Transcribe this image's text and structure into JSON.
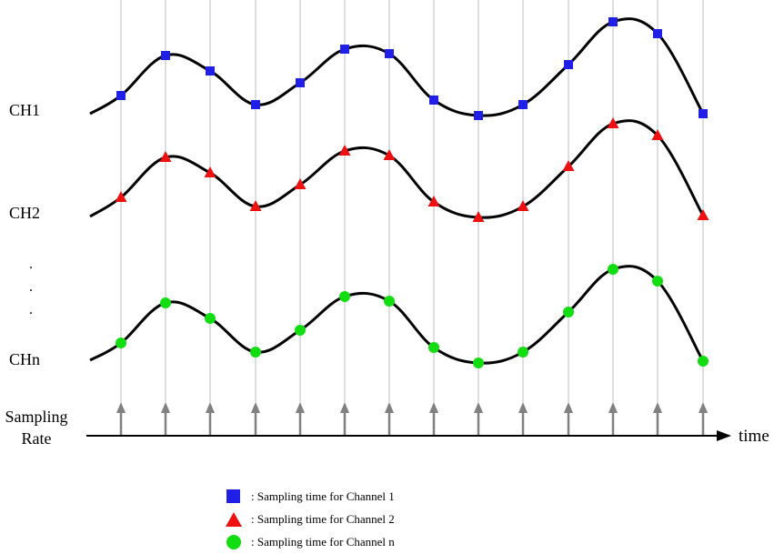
{
  "channels": [
    {
      "label": "CH1",
      "marker": "square",
      "color": "#1f1fe6"
    },
    {
      "label": "CH2",
      "marker": "triangle",
      "color": "#ee1111"
    },
    {
      "label": "CHn",
      "marker": "circle",
      "color": "#11dd11"
    }
  ],
  "ellipsis": ".",
  "axis": {
    "left_label_line1": "Sampling",
    "left_label_line2": "Rate",
    "right_label": "time"
  },
  "legend": [
    {
      "marker": "square",
      "color": "#1f1fe6",
      "text": ": Sampling time for Channel 1"
    },
    {
      "marker": "triangle",
      "color": "#ee1111",
      "text": ": Sampling time for Channel 2"
    },
    {
      "marker": "circle",
      "color": "#11dd11",
      "text": ": Sampling time for Channel n"
    }
  ],
  "colors": {
    "grid": "#c8c8c8",
    "arrow": "#808080",
    "curve": "#000000",
    "axis": "#000000"
  }
}
